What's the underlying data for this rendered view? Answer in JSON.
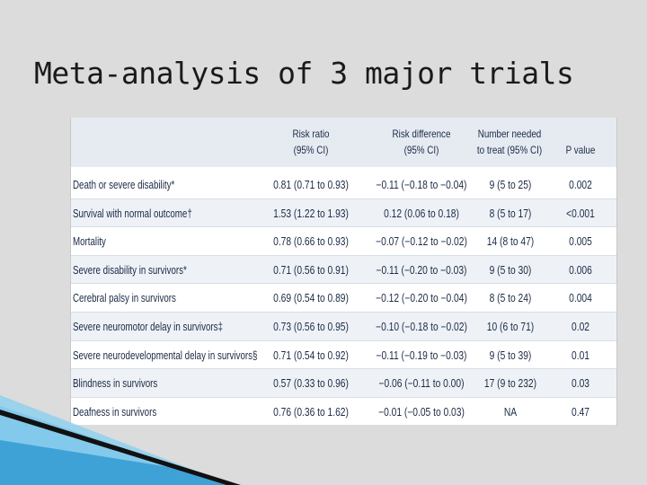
{
  "slide": {
    "title": "Meta-analysis of 3 major trials"
  },
  "table": {
    "headers": {
      "risk_ratio": [
        "Risk ratio",
        "(95% CI)"
      ],
      "risk_difference": [
        "Risk difference",
        "(95% CI)"
      ],
      "nnt": [
        "Number needed",
        "to treat (95% CI)"
      ],
      "p_value": [
        "P value"
      ]
    },
    "rows": [
      {
        "outcome": "Death or severe disability*",
        "rr": "0.81 (0.71 to 0.93)",
        "rd": "−0.11 (−0.18 to −0.04)",
        "nnt": "9 (5 to 25)",
        "p": "0.002"
      },
      {
        "outcome": "Survival with normal outcome†",
        "rr": "1.53 (1.22 to 1.93)",
        "rd": "0.12 (0.06 to 0.18)",
        "nnt": "8 (5 to 17)",
        "p": "<0.001"
      },
      {
        "outcome": "Mortality",
        "rr": "0.78 (0.66 to 0.93)",
        "rd": "−0.07 (−0.12 to −0.02)",
        "nnt": "14 (8 to 47)",
        "p": "0.005"
      },
      {
        "outcome": "Severe disability in survivors*",
        "rr": "0.71 (0.56 to 0.91)",
        "rd": "−0.11 (−0.20 to −0.03)",
        "nnt": "9 (5 to 30)",
        "p": "0.006"
      },
      {
        "outcome": "Cerebral palsy in survivors",
        "rr": "0.69 (0.54 to 0.89)",
        "rd": "−0.12 (−0.20 to −0.04)",
        "nnt": "8 (5 to 24)",
        "p": "0.004"
      },
      {
        "outcome": "Severe neuromotor delay in survivors‡",
        "rr": "0.73 (0.56 to 0.95)",
        "rd": "−0.10 (−0.18 to −0.02)",
        "nnt": "10 (6 to 71)",
        "p": "0.02"
      },
      {
        "outcome": "Severe neurodevelopmental delay in survivors§",
        "rr": "0.71 (0.54 to 0.92)",
        "rd": "−0.11 (−0.19 to −0.03)",
        "nnt": "9 (5 to 39)",
        "p": "0.01"
      },
      {
        "outcome": "Blindness in survivors",
        "rr": "0.57 (0.33 to 0.96)",
        "rd": "−0.06 (−0.11 to 0.00)",
        "nnt": "17 (9 to 232)",
        "p": "0.03"
      },
      {
        "outcome": "Deafness in survivors",
        "rr": "0.76 (0.36 to 1.62)",
        "rd": "−0.01 (−0.05 to 0.03)",
        "nnt": "NA",
        "p": "0.47"
      }
    ]
  },
  "colors": {
    "background": "#dcdcdc",
    "header_fill": "#e6ebf2",
    "stripe_fill": "#eef2f7",
    "text": "#1b2a44",
    "accent_blue": "#2e9bd6",
    "accent_dark": "#111111"
  }
}
